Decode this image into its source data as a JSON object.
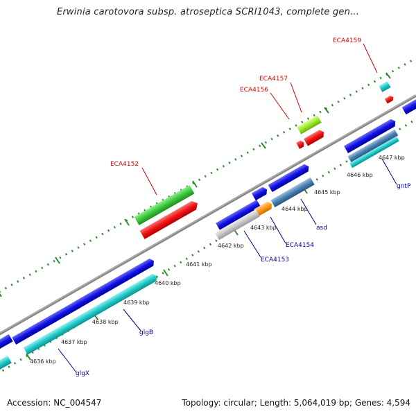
{
  "header": {
    "title": "Erwinia carotovora subsp. atroseptica SCRI1043, complete gen..."
  },
  "footer": {
    "accession": "Accession: NC_004547",
    "summary": "Topology: circular; Length: 5,064,019 bp; Genes: 4,594"
  },
  "colors": {
    "backbone": "#888888",
    "tick": "#2d8a2d",
    "dark_blue": "#1212e0",
    "cyan": "#1fc9c9",
    "steel_blue": "#4a7fb0",
    "green": "#3cc83c",
    "lime": "#9bea2a",
    "red": "#ee1515",
    "orange": "#ff9a1a",
    "light_gray": "#c8c8c8",
    "red_label": "#d40000",
    "blue_label": "#000099"
  },
  "tick_labels": [
    "4636 kbp",
    "4637 kbp",
    "4638 kbp",
    "4639 kbp",
    "4640 kbp",
    "4641 kbp",
    "4642 kbp",
    "4643 kbp",
    "4644 kbp",
    "4645 kbp",
    "4646 kbp",
    "4647 kbp"
  ],
  "gene_labels": {
    "top": [
      "ECA4152",
      "ECA4156",
      "ECA4157",
      "ECA4159"
    ],
    "bottom": [
      "glgX",
      "glgB",
      "ECA4153",
      "ECA4154",
      "asd",
      "gntP"
    ]
  }
}
